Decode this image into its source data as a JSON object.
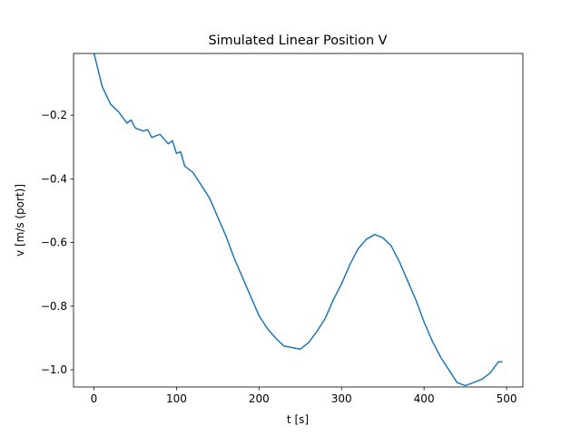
{
  "chart_data": {
    "type": "line",
    "title": "Simulated Linear Position V",
    "x_label": "t [s]",
    "y_label": "v [m/s (port)]",
    "x": [
      0,
      10,
      20,
      30,
      40,
      45,
      50,
      60,
      65,
      70,
      80,
      90,
      95,
      100,
      105,
      110,
      120,
      130,
      140,
      150,
      160,
      170,
      180,
      190,
      200,
      210,
      220,
      230,
      240,
      250,
      260,
      270,
      280,
      290,
      300,
      310,
      320,
      330,
      340,
      350,
      360,
      370,
      380,
      390,
      400,
      410,
      420,
      430,
      440,
      450,
      460,
      470,
      480,
      490,
      495
    ],
    "series": [
      {
        "name": "v",
        "color": "#1f77b4",
        "values": [
          -0.005,
          -0.11,
          -0.165,
          -0.19,
          -0.225,
          -0.215,
          -0.24,
          -0.25,
          -0.245,
          -0.27,
          -0.26,
          -0.29,
          -0.28,
          -0.32,
          -0.315,
          -0.36,
          -0.38,
          -0.42,
          -0.46,
          -0.52,
          -0.58,
          -0.65,
          -0.71,
          -0.77,
          -0.83,
          -0.87,
          -0.9,
          -0.925,
          -0.93,
          -0.935,
          -0.915,
          -0.88,
          -0.84,
          -0.78,
          -0.73,
          -0.67,
          -0.62,
          -0.59,
          -0.575,
          -0.585,
          -0.61,
          -0.66,
          -0.72,
          -0.78,
          -0.85,
          -0.91,
          -0.96,
          -1.0,
          -1.04,
          -1.05,
          -1.04,
          -1.03,
          -1.01,
          -0.975,
          -0.975
        ]
      }
    ],
    "xlim": [
      -24.75,
      519.75
    ],
    "ylim": [
      -1.054,
      -0.006
    ],
    "xticks": [
      0,
      100,
      200,
      300,
      400,
      500
    ],
    "yticks": [
      {
        "value": -1.0,
        "label": "−1.0"
      },
      {
        "value": -0.8,
        "label": "−0.8"
      },
      {
        "value": -0.6,
        "label": "−0.6"
      },
      {
        "value": -0.4,
        "label": "−0.4"
      },
      {
        "value": -0.2,
        "label": "−0.2"
      }
    ]
  }
}
